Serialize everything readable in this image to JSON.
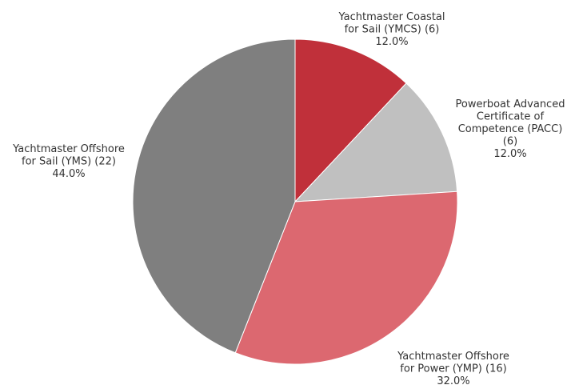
{
  "chart_data": {
    "type": "pie",
    "start_angle_deg": 0,
    "direction": "clockwise",
    "slices": [
      {
        "label_lines": [
          "Yachtmaster Coastal",
          "for Sail (YMCS) (6)"
        ],
        "value": 6,
        "percent_label": "12.0%",
        "color": "#c0303a"
      },
      {
        "label_lines": [
          "Powerboat Advanced",
          "Certificate of",
          "Competence (PACC)",
          "(6)"
        ],
        "value": 6,
        "percent_label": "12.0%",
        "color": "#c0c0c0"
      },
      {
        "label_lines": [
          "Yachtmaster Offshore",
          "for Power (YMP) (16)"
        ],
        "value": 16,
        "percent_label": "32.0%",
        "color": "#dc6870"
      },
      {
        "label_lines": [
          "Yachtmaster Offshore",
          "for Sail (YMS) (22)"
        ],
        "value": 22,
        "percent_label": "44.0%",
        "color": "#7f7f7f"
      }
    ]
  }
}
